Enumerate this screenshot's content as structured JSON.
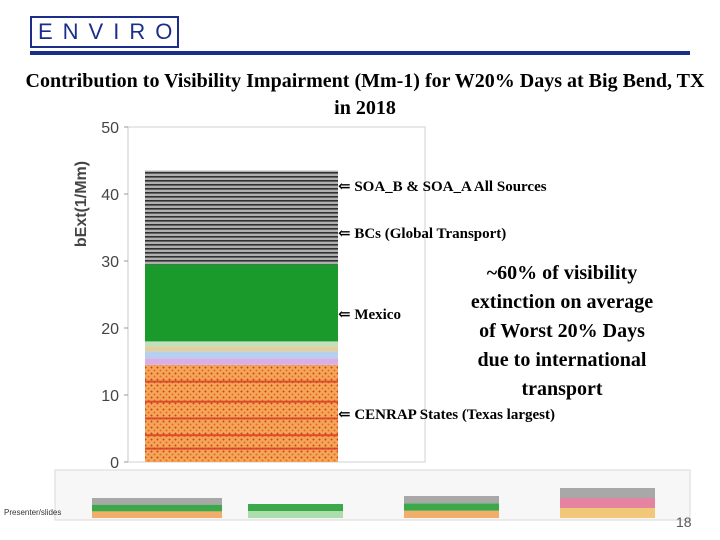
{
  "logo_text": "ENVIRON",
  "title": "Contribution to Visibility Impairment (Mm-1) for W20% Days at Big Bend, TX in 2018",
  "colors": {
    "brand": "#1b2f8a",
    "soa": "#9a9a9a",
    "bcs": "#1a9a2a",
    "mexico": "#c8b8e0",
    "cenrap": "#f0a050"
  },
  "chart_data": {
    "type": "bar",
    "stacked": true,
    "ylabel": "bExt(1/Mm)",
    "ylim": [
      0,
      50
    ],
    "yticks": [
      0,
      10,
      20,
      30,
      40,
      50
    ],
    "grid": false,
    "segments": [
      {
        "group": "cenrap",
        "from": 0,
        "to": 14.5,
        "color": "#f0a050",
        "pattern": "dots"
      },
      {
        "group": "mexico",
        "from": 14.5,
        "to": 15.5,
        "color": "#d8b0e8",
        "pattern": "none"
      },
      {
        "group": "mexico",
        "from": 15.5,
        "to": 16.5,
        "color": "#b8d0f0",
        "pattern": "none"
      },
      {
        "group": "mexico",
        "from": 16.5,
        "to": 17.3,
        "color": "#e0d0a0",
        "pattern": "none"
      },
      {
        "group": "mexico",
        "from": 17.3,
        "to": 18.0,
        "color": "#c0e0c0",
        "pattern": "none"
      },
      {
        "group": "bcs",
        "from": 18.0,
        "to": 29.5,
        "color": "#1a9a2a",
        "pattern": "none"
      },
      {
        "group": "soa",
        "from": 29.5,
        "to": 43.5,
        "color": "#9a9a9a",
        "pattern": "stripes"
      }
    ]
  },
  "annotations": [
    {
      "key": "soa",
      "text": "ç SOA_B & SOA_A All Sources",
      "value": 41
    },
    {
      "key": "bcs",
      "text": "ç BCs (Global Transport)",
      "value": 34
    },
    {
      "key": "mexico",
      "text": "ç Mexico",
      "value": 22
    },
    {
      "key": "cenrap",
      "text": "ç CENRAP States (Texas largest)",
      "value": 7
    }
  ],
  "callout_lines": [
    "~60% of visibility",
    "extinction on average",
    "of Worst 20% Days",
    "due to international",
    "transport"
  ],
  "page_number": "18",
  "footnote": "Presenter/slides"
}
